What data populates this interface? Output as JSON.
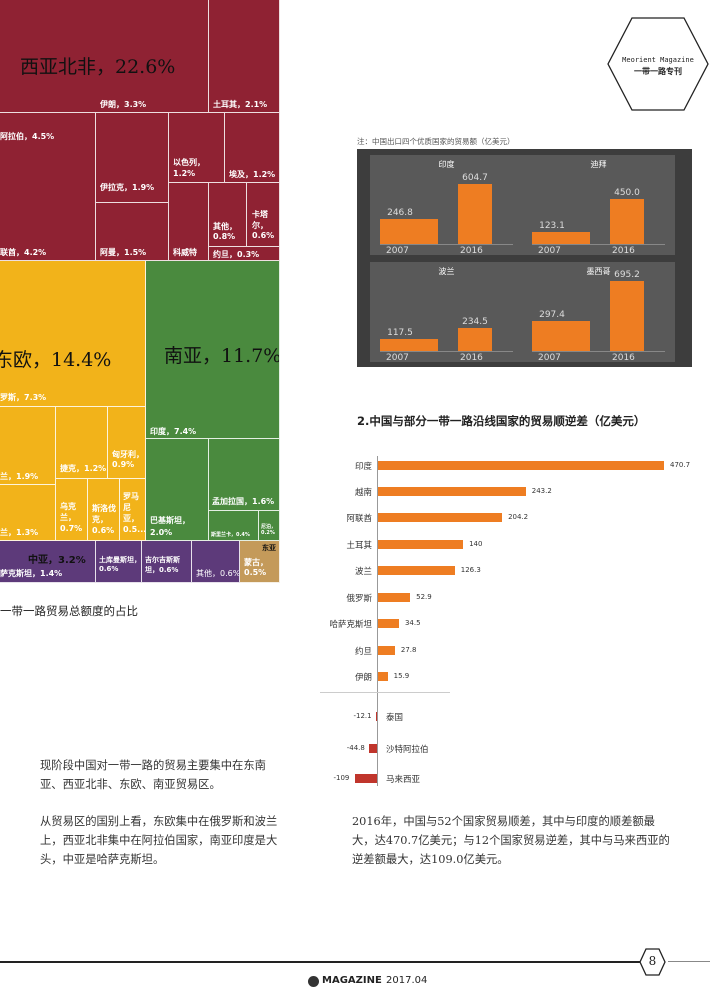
{
  "header": {
    "magazine_name": "Meorient Magazine",
    "special_issue": "一带一路专刊"
  },
  "treemap": {
    "caption": "一带一路贸易总额度的占比",
    "blocks": {
      "west_asia_north_africa": "西亚北非，22.6%",
      "iran": "伊朗，3.3%",
      "turkey": "土耳其，2.1%",
      "saudi": "阿拉伯，4.5%",
      "israel": "以色列，1.2%",
      "egypt": "埃及，1.2%",
      "iraq": "伊拉克，1.9%",
      "other_wana": "其他，0.8%",
      "qatar": "卡塔尔，0.6%",
      "uae": "联酋，4.2%",
      "oman": "阿曼，1.5%",
      "kuwait": "科威特",
      "jordan": "约旦，0.3%",
      "east_europe": "东欧，14.4%",
      "russia": "罗斯，7.3%",
      "czech": "捷克，1.2%",
      "hungary": "匈牙利，0.9%",
      "ee_small1": "兰，1.9%",
      "ukraine": "乌克兰，0.7%",
      "slovakia": "斯洛伐克，0.6%",
      "romania": "罗马尼亚，0.5...",
      "ee_small2": "兰，1.3%",
      "south_asia": "南亚，11.7%",
      "india": "印度，7.4%",
      "bangladesh": "孟加拉国，1.6%",
      "pakistan": "巴基斯坦，2.0%",
      "sa_tiny1": "斯里兰卡，0.4%",
      "sa_tiny2": "尼泊，0.2%",
      "central_asia": "中亚，3.2%",
      "kazakhstan": "萨克斯坦，1.4%",
      "turkmenistan": "土库曼斯坦，0.6%",
      "kyrgyzstan": "吉尔吉斯斯坦，0.6%",
      "other_ca": "其他，0.6%",
      "east_asia": "东亚",
      "mongolia": "蒙古，0.5%"
    }
  },
  "mini_charts": {
    "note": "注：中国出口四个优质国家的贸易额（亿美元）",
    "charts": [
      {
        "name": "印度",
        "y2007": "246.8",
        "y2016": "604.7",
        "v2007": 246.8,
        "v2016": 604.7
      },
      {
        "name": "迪拜",
        "y2007": "123.1",
        "y2016": "450.0",
        "v2007": 123.1,
        "v2016": 450.0
      },
      {
        "name": "波兰",
        "y2007": "117.5",
        "y2016": "234.5",
        "v2007": 117.5,
        "v2016": 234.5
      },
      {
        "name": "墨西哥",
        "y2007": "297.4",
        "y2016": "695.2",
        "v2007": 297.4,
        "v2016": 695.2
      }
    ],
    "year_a": "2007",
    "year_b": "2016"
  },
  "chart_data": {
    "type": "bar",
    "title": "2.中国与部分一带一路沿线国家的贸易顺逆差（亿美元）",
    "categories": [
      "印度",
      "越南",
      "阿联酋",
      "土耳其",
      "波兰",
      "俄罗斯",
      "哈萨克斯坦",
      "约旦",
      "伊朗",
      "泰国",
      "沙特阿拉伯",
      "马来西亚"
    ],
    "values": [
      470.7,
      243.2,
      204.2,
      140,
      126.3,
      52.9,
      34.5,
      27.8,
      15.9,
      -12.1,
      -44.8,
      -109.0
    ],
    "value_labels": [
      "470.7",
      "243.2",
      "204.2",
      "140",
      "126.3",
      "52.9",
      "34.5",
      "27.8",
      "15.9",
      "-12.1",
      "-44.8",
      "-109"
    ],
    "colors": {
      "positive": "#ee7d22",
      "negative": "#c0352c"
    }
  },
  "text": {
    "para1": "现阶段中国对一带一路的贸易主要集中在东南亚、西亚北非、东欧、南亚贸易区。",
    "para2": "从贸易区的国别上看，东欧集中在俄罗斯和波兰上，西亚北非集中在阿拉伯国家，南亚印度是大头，中亚是哈萨克斯坦。",
    "para3": "2016年，中国与52个国家贸易顺差，其中与印度的顺差额最大，达470.7亿美元；与12个国家贸易逆差，其中与马来西亚的逆差额最大，达109.0亿美元。"
  },
  "footer": {
    "brand": "MAGAZINE",
    "date": "2017.04",
    "page_number": "8"
  }
}
